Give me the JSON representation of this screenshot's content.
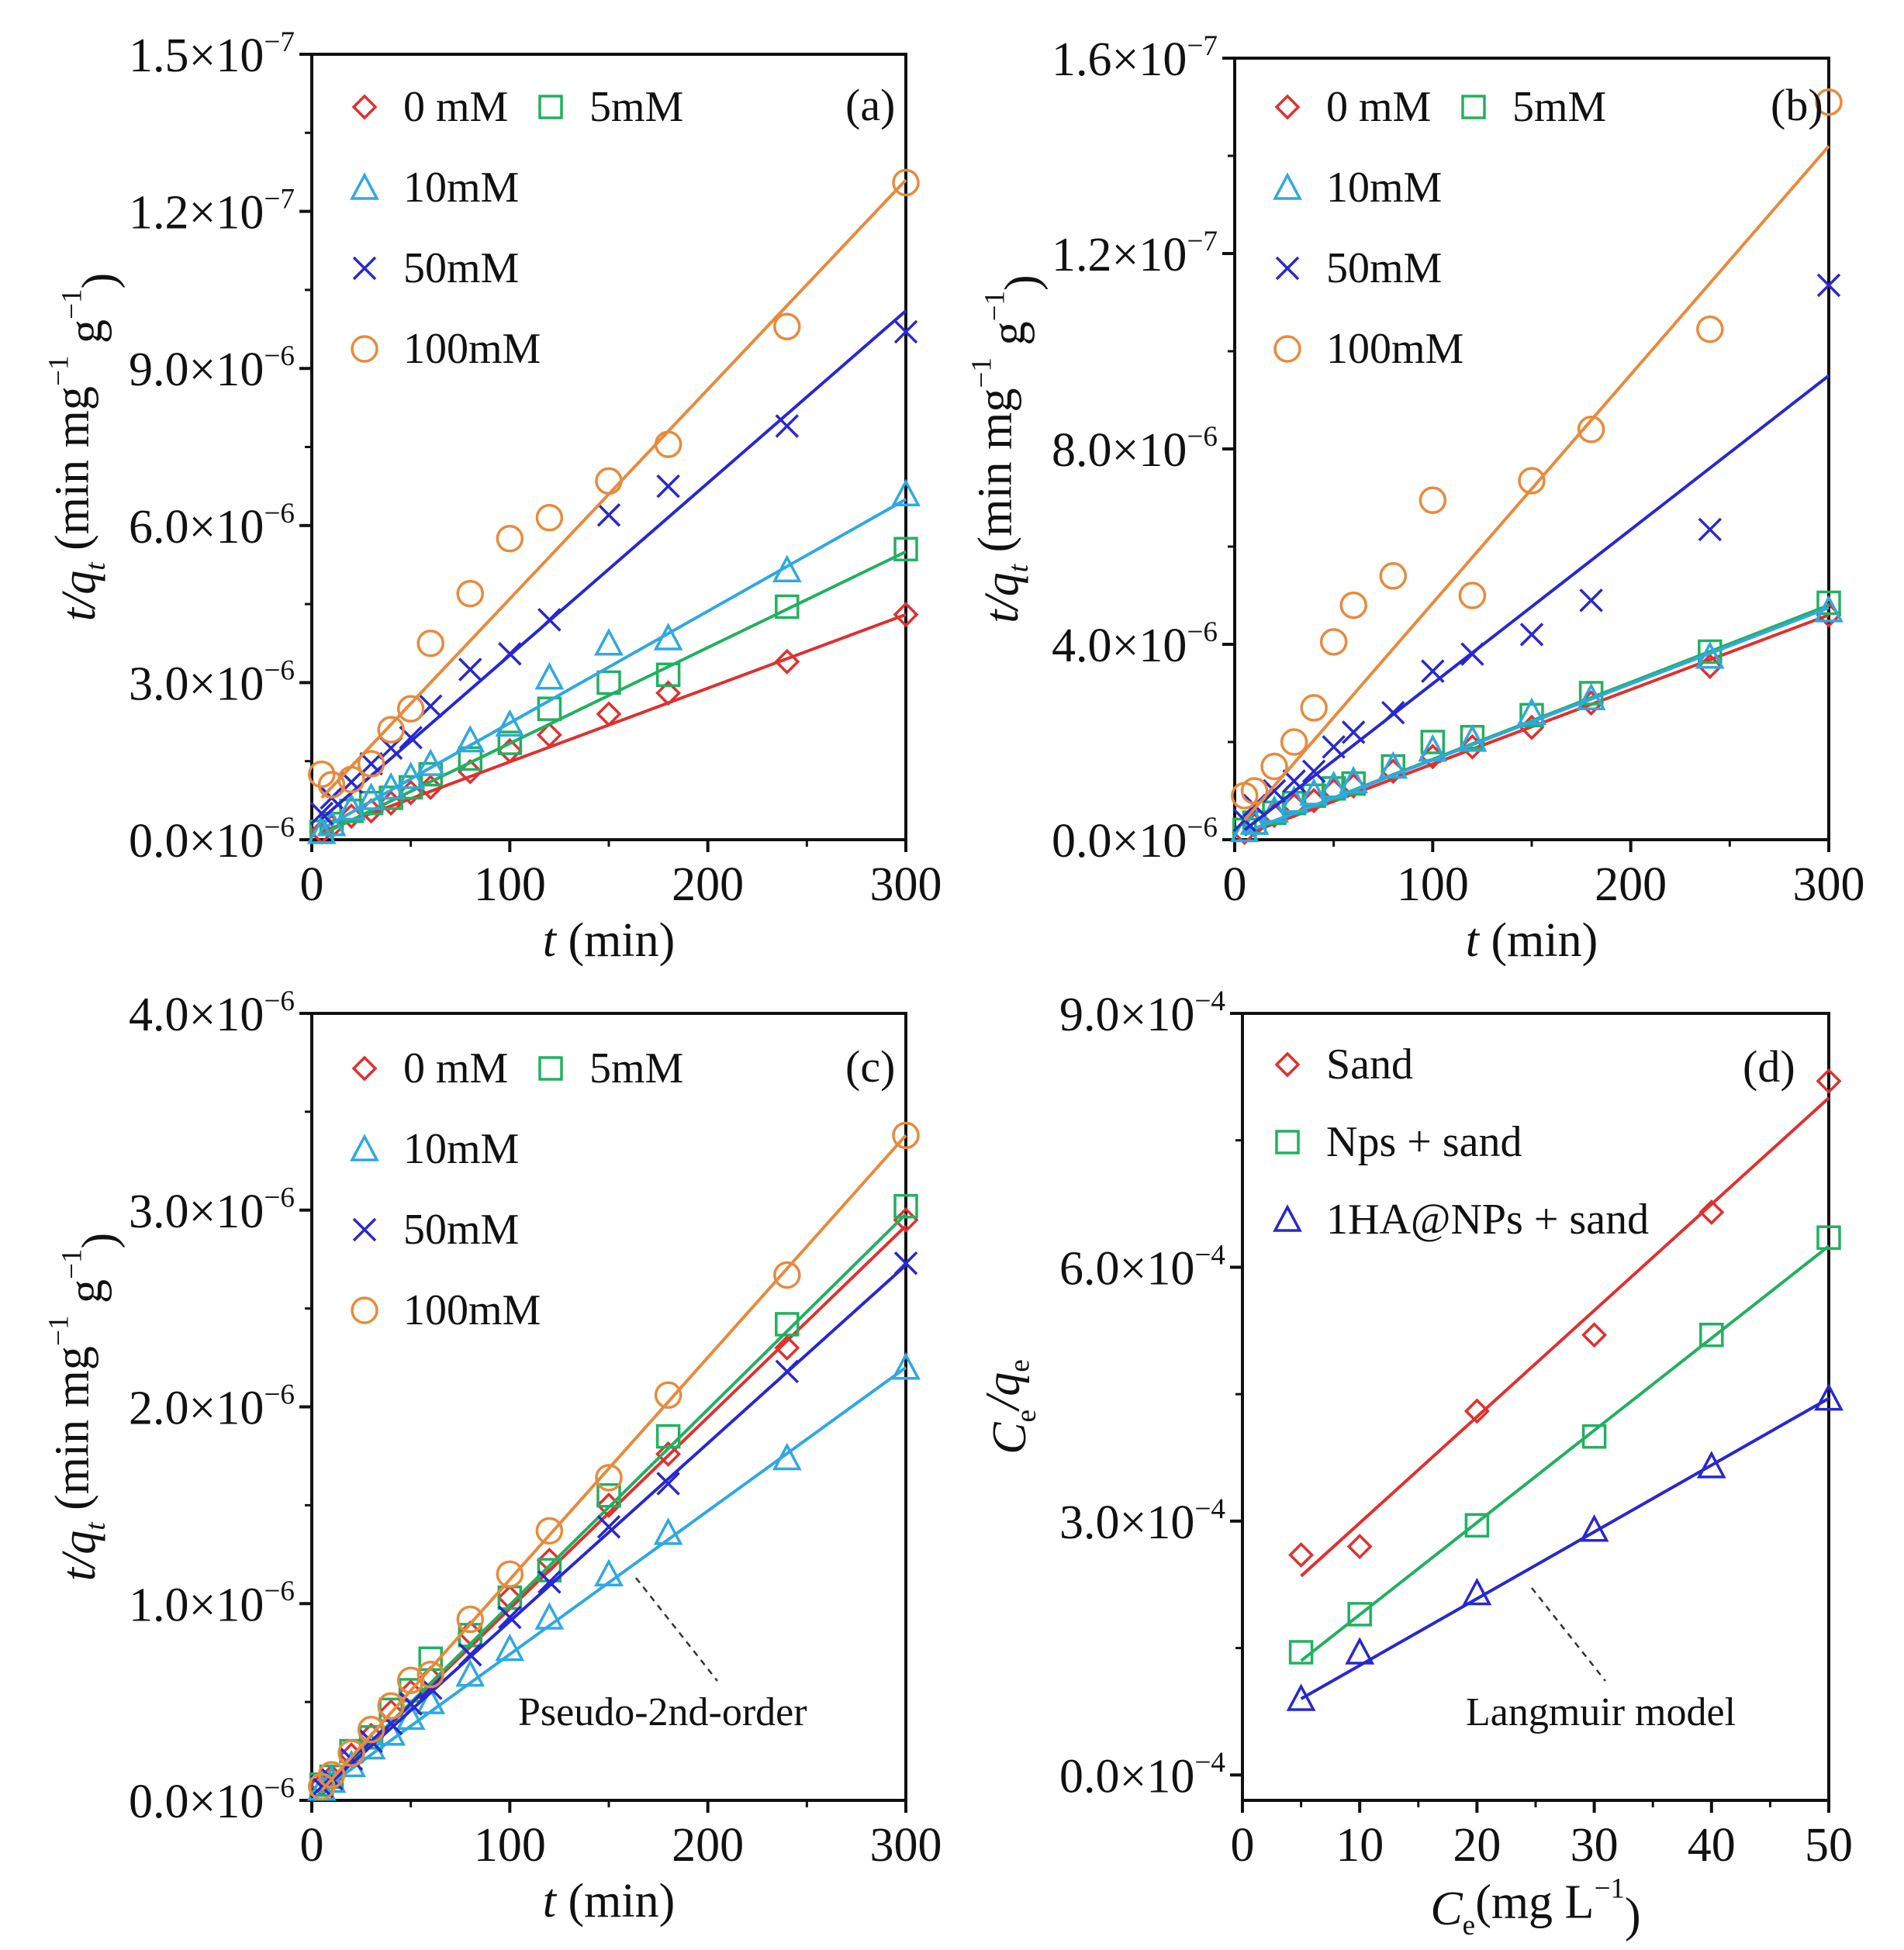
{
  "colors": {
    "red": "#e03030",
    "green": "#22b060",
    "cyan": "#30a8e0",
    "blue": "#2828d0",
    "orange": "#e88a3c",
    "axis": "#111111"
  },
  "chart_data": [
    {
      "panel": "a",
      "type": "scatter",
      "tag": "(a)",
      "xlabel_var": "t",
      "xlabel_unit": " (min)",
      "ylabel_var": "t/q",
      "ylabel_sub": "t",
      "ylabel_unit": " (min mg",
      "ylabel_exp": "−1",
      "ylabel_tail": " g",
      "ylabel_tail_exp": "−1",
      "ylabel_close": ")",
      "xlim": [
        0,
        300
      ],
      "ylim": [
        0,
        1.5e-07
      ],
      "x_ticks": [
        "0",
        "100",
        "200",
        "300"
      ],
      "y_ticks": [
        {
          "mant": "0.0×10",
          "exp": "−6"
        },
        {
          "mant": "3.0×10",
          "exp": "−6"
        },
        {
          "mant": "6.0×10",
          "exp": "−6"
        },
        {
          "mant": "9.0×10",
          "exp": "−6"
        },
        {
          "mant": "1.2×10",
          "exp": "−7"
        },
        {
          "mant": "1.5×10",
          "exp": "−7"
        }
      ],
      "legend": [
        "0 mM",
        "5mM",
        "10mM",
        "50mM",
        "100mM"
      ],
      "series": [
        {
          "name": "0 mM",
          "marker": "diamond",
          "color": "red",
          "x": [
            5,
            10,
            20,
            30,
            40,
            50,
            60,
            80,
            100,
            120,
            150,
            180,
            240,
            300
          ],
          "y": [
            1.5e-09,
            2.5e-09,
            4.5e-09,
            5.5e-09,
            7e-09,
            9e-09,
            1e-08,
            1.3e-08,
            1.7e-08,
            2e-08,
            2.4e-08,
            2.8e-08,
            3.4e-08,
            4.3e-08
          ],
          "fit": [
            [
              5,
              1.5e-09
            ],
            [
              300,
              4.3e-08
            ]
          ]
        },
        {
          "name": "5mM",
          "marker": "square",
          "color": "green",
          "x": [
            5,
            10,
            20,
            30,
            40,
            50,
            60,
            80,
            100,
            120,
            150,
            180,
            240,
            300
          ],
          "y": [
            1.5e-09,
            3e-09,
            5.5e-09,
            7e-09,
            8e-09,
            1e-08,
            1.25e-08,
            1.55e-08,
            1.85e-08,
            2.5e-08,
            3e-08,
            3.15e-08,
            4.45e-08,
            5.55e-08
          ],
          "fit": [
            [
              5,
              1e-09
            ],
            [
              300,
              5.5e-08
            ]
          ]
        },
        {
          "name": "10mM",
          "marker": "triangle",
          "color": "cyan",
          "x": [
            5,
            10,
            20,
            30,
            40,
            50,
            60,
            80,
            100,
            120,
            150,
            180,
            240,
            300
          ],
          "y": [
            1.5e-09,
            3e-09,
            6e-09,
            8e-09,
            1e-08,
            1.2e-08,
            1.45e-08,
            1.9e-08,
            2.2e-08,
            3.1e-08,
            3.75e-08,
            3.85e-08,
            5.15e-08,
            6.6e-08
          ],
          "fit": [
            [
              5,
              2e-09
            ],
            [
              300,
              6.5e-08
            ]
          ]
        },
        {
          "name": "50mM",
          "marker": "cross",
          "color": "blue",
          "x": [
            5,
            10,
            20,
            30,
            40,
            50,
            60,
            80,
            100,
            120,
            150,
            180,
            240,
            300
          ],
          "y": [
            5e-09,
            8e-09,
            1.1e-08,
            1.45e-08,
            1.75e-08,
            1.95e-08,
            2.55e-08,
            3.25e-08,
            3.55e-08,
            4.2e-08,
            6.2e-08,
            6.75e-08,
            7.9e-08,
            9.7e-08
          ],
          "fit": [
            [
              5,
              4e-09
            ],
            [
              300,
              1.01e-07
            ]
          ]
        },
        {
          "name": "100mM",
          "marker": "circle",
          "color": "orange",
          "x": [
            5,
            10,
            20,
            30,
            40,
            50,
            60,
            80,
            100,
            120,
            150,
            180,
            240,
            300
          ],
          "y": [
            1.25e-08,
            1.05e-08,
            1.15e-08,
            1.45e-08,
            2.1e-08,
            2.5e-08,
            3.75e-08,
            4.7e-08,
            5.75e-08,
            6.15e-08,
            6.85e-08,
            7.55e-08,
            9.8e-08,
            1.255e-07
          ],
          "fit": [
            [
              5,
              8e-09
            ],
            [
              300,
              1.26e-07
            ]
          ]
        }
      ]
    },
    {
      "panel": "b",
      "type": "scatter",
      "tag": "(b)",
      "xlabel_var": "t",
      "xlabel_unit": " (min)",
      "ylabel_var": "t/q",
      "ylabel_sub": "t",
      "ylabel_unit": " (min mg",
      "ylabel_exp": "−1",
      "ylabel_tail": " g",
      "ylabel_tail_exp": "−1",
      "ylabel_close": ")",
      "xlim": [
        0,
        300
      ],
      "ylim": [
        0,
        1.6e-07
      ],
      "x_ticks": [
        "0",
        "100",
        "200",
        "300"
      ],
      "y_ticks": [
        {
          "mant": "0.0×10",
          "exp": "−6"
        },
        {
          "mant": "4.0×10",
          "exp": "−6"
        },
        {
          "mant": "8.0×10",
          "exp": "−6"
        },
        {
          "mant": "1.2×10",
          "exp": "−7"
        },
        {
          "mant": "1.6×10",
          "exp": "−7"
        }
      ],
      "legend": [
        "0 mM",
        "5mM",
        "10mM",
        "50mM",
        "100mM"
      ],
      "series": [
        {
          "name": "0 mM",
          "marker": "diamond",
          "color": "red",
          "x": [
            5,
            10,
            20,
            30,
            40,
            50,
            60,
            80,
            100,
            120,
            150,
            180,
            240,
            300
          ],
          "y": [
            1.5e-09,
            3e-09,
            5e-09,
            7e-09,
            8e-09,
            1e-08,
            1.1e-08,
            1.4e-08,
            1.7e-08,
            1.9e-08,
            2.3e-08,
            2.8e-08,
            3.55e-08,
            4.6e-08
          ],
          "fit": [
            [
              5,
              1e-09
            ],
            [
              300,
              4.6e-08
            ]
          ]
        },
        {
          "name": "5mM",
          "marker": "square",
          "color": "green",
          "x": [
            5,
            10,
            20,
            30,
            40,
            50,
            60,
            80,
            100,
            120,
            150,
            180,
            240,
            300
          ],
          "y": [
            2e-09,
            3.5e-09,
            5.5e-09,
            7.5e-09,
            9e-09,
            1.05e-08,
            1.15e-08,
            1.5e-08,
            2e-08,
            2.1e-08,
            2.55e-08,
            3e-08,
            3.85e-08,
            4.85e-08
          ],
          "fit": [
            [
              5,
              1.5e-09
            ],
            [
              300,
              4.8e-08
            ]
          ]
        },
        {
          "name": "10mM",
          "marker": "triangle",
          "color": "cyan",
          "x": [
            5,
            10,
            20,
            30,
            40,
            50,
            60,
            80,
            100,
            120,
            150,
            180,
            240,
            300
          ],
          "y": [
            2e-09,
            3.5e-09,
            6e-09,
            8e-09,
            9.5e-09,
            1.1e-08,
            1.2e-08,
            1.5e-08,
            1.85e-08,
            2.05e-08,
            2.6e-08,
            2.9e-08,
            3.75e-08,
            4.7e-08
          ],
          "fit": [
            [
              5,
              1.5e-09
            ],
            [
              300,
              4.75e-08
            ]
          ]
        },
        {
          "name": "50mM",
          "marker": "cross",
          "color": "blue",
          "x": [
            5,
            10,
            20,
            30,
            40,
            50,
            60,
            80,
            100,
            120,
            150,
            180,
            240,
            300
          ],
          "y": [
            4e-09,
            7e-09,
            1e-08,
            1.2e-08,
            1.4e-08,
            1.9e-08,
            2.2e-08,
            2.6e-08,
            3.45e-08,
            3.8e-08,
            4.2e-08,
            4.9e-08,
            6.35e-08,
            1.135e-07
          ],
          "fit": [
            [
              5,
              2e-09
            ],
            [
              300,
              9.5e-08
            ]
          ]
        },
        {
          "name": "100mM",
          "marker": "circle",
          "color": "orange",
          "x": [
            5,
            10,
            20,
            30,
            40,
            50,
            60,
            80,
            100,
            120,
            150,
            180,
            240,
            300
          ],
          "y": [
            9e-09,
            1e-08,
            1.5e-08,
            2e-08,
            2.7e-08,
            4.05e-08,
            4.8e-08,
            5.4e-08,
            6.95e-08,
            5e-08,
            7.35e-08,
            8.4e-08,
            1.045e-07,
            1.51e-07
          ],
          "fit": [
            [
              5,
              4e-09
            ],
            [
              300,
              1.42e-07
            ]
          ]
        }
      ]
    },
    {
      "panel": "c",
      "type": "scatter",
      "tag": "(c)",
      "annotation": "Pseudo-2nd-order",
      "xlabel_var": "t",
      "xlabel_unit": " (min)",
      "ylabel_var": "t/q",
      "ylabel_sub": "t",
      "ylabel_unit": " (min mg",
      "ylabel_exp": "−1",
      "ylabel_tail": " g",
      "ylabel_tail_exp": "−1",
      "ylabel_close": ")",
      "xlim": [
        0,
        300
      ],
      "ylim": [
        0,
        4e-06
      ],
      "x_ticks": [
        "0",
        "100",
        "200",
        "300"
      ],
      "y_ticks": [
        {
          "mant": "0.0×10",
          "exp": "−6"
        },
        {
          "mant": "1.0×10",
          "exp": "−6"
        },
        {
          "mant": "2.0×10",
          "exp": "−6"
        },
        {
          "mant": "3.0×10",
          "exp": "−6"
        },
        {
          "mant": "4.0×10",
          "exp": "−6"
        }
      ],
      "legend": [
        "0 mM",
        "5mM",
        "10mM",
        "50mM",
        "100mM"
      ],
      "series": [
        {
          "name": "0 mM",
          "marker": "diamond",
          "color": "red",
          "x": [
            5,
            10,
            20,
            30,
            40,
            50,
            60,
            80,
            100,
            120,
            150,
            180,
            240,
            300
          ],
          "y": [
            8e-08,
            1.2e-07,
            2.3e-07,
            3.3e-07,
            4.5e-07,
            5.5e-07,
            6.2e-07,
            8.5e-07,
            1.03e-06,
            1.22e-06,
            1.5e-06,
            1.76e-06,
            2.3e-06,
            2.95e-06
          ],
          "fit": [
            [
              5,
              5e-08
            ],
            [
              300,
              2.92e-06
            ]
          ]
        },
        {
          "name": "5mM",
          "marker": "square",
          "color": "green",
          "x": [
            5,
            10,
            20,
            30,
            40,
            50,
            60,
            80,
            100,
            120,
            150,
            180,
            240,
            300
          ],
          "y": [
            8e-08,
            1.2e-07,
            2.5e-07,
            3.2e-07,
            4.6e-07,
            5.6e-07,
            7.2e-07,
            8.4e-07,
            1.03e-06,
            1.17e-06,
            1.55e-06,
            1.85e-06,
            2.42e-06,
            3.02e-06
          ],
          "fit": [
            [
              5,
              5e-08
            ],
            [
              300,
              2.98e-06
            ]
          ]
        },
        {
          "name": "10mM",
          "marker": "triangle",
          "color": "cyan",
          "x": [
            5,
            10,
            20,
            30,
            40,
            50,
            60,
            80,
            100,
            120,
            150,
            180,
            240,
            300
          ],
          "y": [
            6e-08,
            1e-07,
            1.8e-07,
            2.7e-07,
            3.4e-07,
            4.2e-07,
            5e-07,
            6.4e-07,
            7.7e-07,
            9.3e-07,
            1.15e-06,
            1.36e-06,
            1.74e-06,
            2.2e-06
          ],
          "fit": [
            [
              5,
              5e-08
            ],
            [
              300,
              2.2e-06
            ]
          ]
        },
        {
          "name": "50mM",
          "marker": "cross",
          "color": "blue",
          "x": [
            5,
            10,
            20,
            30,
            40,
            50,
            60,
            80,
            100,
            120,
            150,
            180,
            240,
            300
          ],
          "y": [
            7e-08,
            1.1e-07,
            2.1e-07,
            3e-07,
            3.9e-07,
            4.9e-07,
            5.7e-07,
            7.4e-07,
            9.3e-07,
            1.11e-06,
            1.39e-06,
            1.61e-06,
            2.18e-06,
            2.73e-06
          ],
          "fit": [
            [
              5,
              5e-08
            ],
            [
              300,
              2.72e-06
            ]
          ]
        },
        {
          "name": "100mM",
          "marker": "circle",
          "color": "orange",
          "x": [
            5,
            10,
            20,
            30,
            40,
            50,
            60,
            80,
            100,
            120,
            150,
            180,
            240,
            300
          ],
          "y": [
            7e-08,
            1.3e-07,
            2.4e-07,
            3.6e-07,
            4.8e-07,
            6.1e-07,
            6.4e-07,
            9.2e-07,
            1.15e-06,
            1.37e-06,
            1.64e-06,
            2.06e-06,
            2.67e-06,
            3.38e-06
          ],
          "fit": [
            [
              5,
              5e-08
            ],
            [
              300,
              3.38e-06
            ]
          ]
        }
      ]
    },
    {
      "panel": "d",
      "type": "scatter",
      "tag": "(d)",
      "annotation": "Langmuir model",
      "xlabel_var": "C",
      "xlabel_sub": "e",
      "xlabel_unit": "(mg L",
      "xlabel_exp": "−1",
      "xlabel_close": ")",
      "ylabel_var": "C",
      "ylabel_sub": "e",
      "ylabel_mid": "/q",
      "ylabel_sub2": "e",
      "xlim": [
        0,
        50
      ],
      "ylim": [
        -3e-05,
        0.0009
      ],
      "x_ticks": [
        "0",
        "10",
        "20",
        "30",
        "40",
        "50"
      ],
      "y_ticks": [
        {
          "mant": "0.0×10",
          "exp": "−4"
        },
        {
          "mant": "3.0×10",
          "exp": "−4"
        },
        {
          "mant": "6.0×10",
          "exp": "−4"
        },
        {
          "mant": "9.0×10",
          "exp": "−4"
        }
      ],
      "legend": [
        "Sand",
        "Nps + sand",
        "1HA@NPs + sand"
      ],
      "series": [
        {
          "name": "Sand",
          "marker": "diamond",
          "color": "red",
          "x": [
            5,
            10,
            20,
            30,
            40,
            50
          ],
          "y": [
            0.00026,
            0.00027,
            0.00043,
            0.00052,
            0.000665,
            0.00082
          ],
          "fit": [
            [
              5,
              0.000235
            ],
            [
              50,
              0.0008
            ]
          ]
        },
        {
          "name": "Nps + sand",
          "marker": "square",
          "color": "green",
          "x": [
            5,
            10,
            20,
            30,
            40,
            50
          ],
          "y": [
            0.000145,
            0.00019,
            0.000295,
            0.0004,
            0.00052,
            0.000635
          ],
          "fit": [
            [
              5,
              0.000135
            ],
            [
              50,
              0.000625
            ]
          ]
        },
        {
          "name": "1HA@NPs + sand",
          "marker": "triangle",
          "color": "blue",
          "x": [
            5,
            10,
            20,
            30,
            40,
            50
          ],
          "y": [
            9e-05,
            0.000145,
            0.000215,
            0.00029,
            0.000365,
            0.000445
          ],
          "fit": [
            [
              5,
              9e-05
            ],
            [
              50,
              0.000445
            ]
          ]
        }
      ]
    }
  ]
}
